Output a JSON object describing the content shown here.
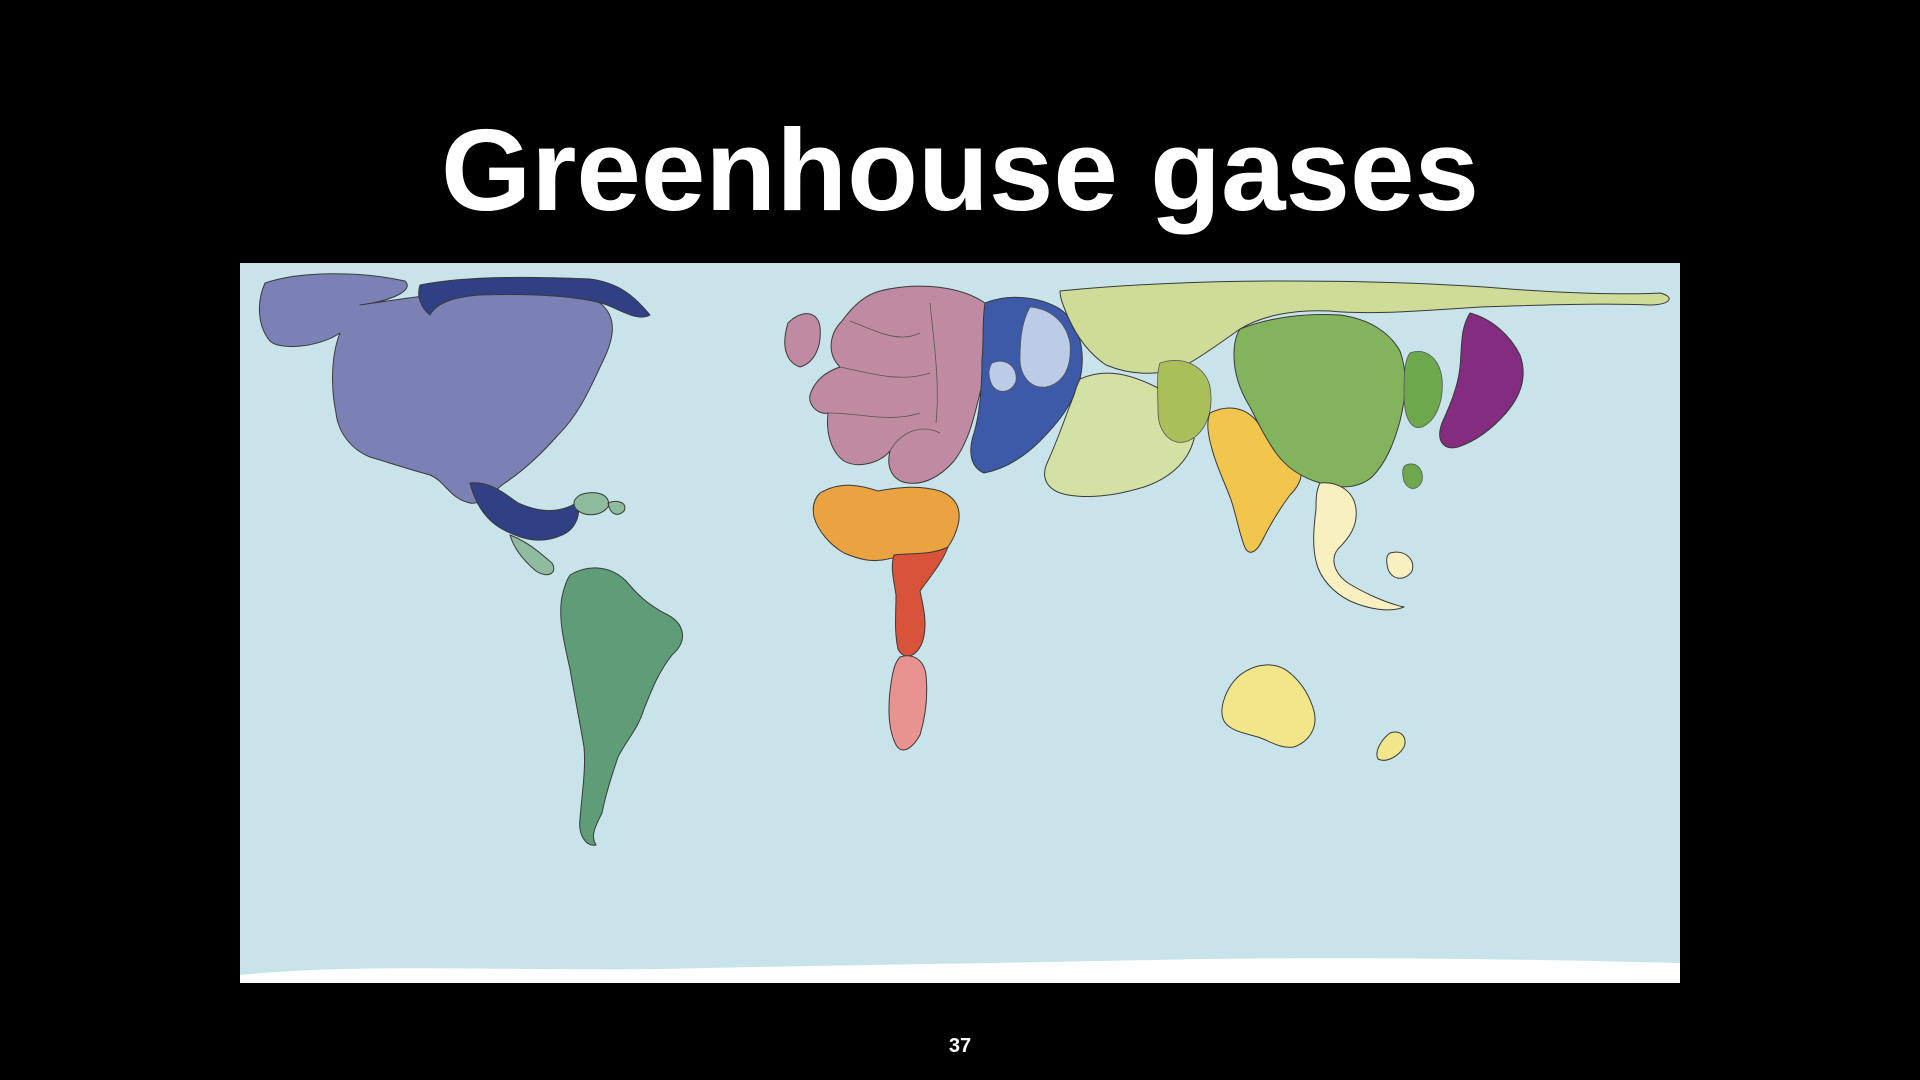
{
  "slide": {
    "title": "Greenhouse gases",
    "page_number": "37"
  },
  "map": {
    "type": "cartogram",
    "background_color": "#c8e3ea",
    "regions": [
      {
        "name": "north-america",
        "color": "#7b80b5"
      },
      {
        "name": "canada-mexico-greenland",
        "color": "#2f4085"
      },
      {
        "name": "central-caribbean",
        "color": "#8fbc9f"
      },
      {
        "name": "south-america",
        "color": "#5f9d78"
      },
      {
        "name": "western-europe",
        "color": "#c08aa2"
      },
      {
        "name": "eastern-europe",
        "color": "#3d5aa8"
      },
      {
        "name": "russia-central-asia",
        "color": "#cfdc97"
      },
      {
        "name": "middle-east",
        "color": "#d4e1a4"
      },
      {
        "name": "north-africa",
        "color": "#eba342"
      },
      {
        "name": "central-africa",
        "color": "#d9533b"
      },
      {
        "name": "southern-africa",
        "color": "#e89390"
      },
      {
        "name": "south-asia",
        "color": "#f2c54c"
      },
      {
        "name": "china",
        "color": "#84b35e"
      },
      {
        "name": "japan",
        "color": "#832c80"
      },
      {
        "name": "southeast-asia",
        "color": "#f8f0c0"
      },
      {
        "name": "oceania",
        "color": "#f2e68a"
      },
      {
        "name": "antarctica",
        "color": "#ffffff"
      }
    ]
  }
}
